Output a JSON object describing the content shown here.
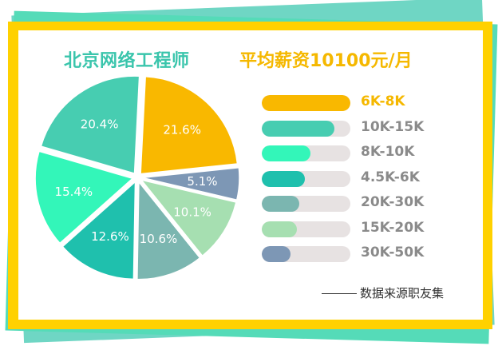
{
  "title_left": "北京网络工程师",
  "title_right": "平均薪资10100元/月",
  "source": "数据来源职友集",
  "colors": {
    "label_text": "#8a8a8a",
    "highlight_label": "#f5b800"
  },
  "chart_data": {
    "type": "pie",
    "title": "北京网络工程师",
    "slices": [
      {
        "label": "6K-8K",
        "value": 21.6,
        "pct_label": "21.6%",
        "color": "#f9b800",
        "bar_fill": 1.0,
        "highlight": true
      },
      {
        "label": "10K-15K",
        "value": 20.4,
        "pct_label": "20.4%",
        "color": "#47cdb1",
        "bar_fill": 0.82,
        "highlight": false
      },
      {
        "label": "8K-10K",
        "value": 15.4,
        "pct_label": "15.4%",
        "color": "#33f6b9",
        "bar_fill": 0.55,
        "highlight": false
      },
      {
        "label": "4.5K-6K",
        "value": 12.6,
        "pct_label": "12.6%",
        "color": "#1fc0ad",
        "bar_fill": 0.49,
        "highlight": false
      },
      {
        "label": "20K-30K",
        "value": 10.6,
        "pct_label": "10.6%",
        "color": "#7bb6b0",
        "bar_fill": 0.42,
        "highlight": false
      },
      {
        "label": "15K-20K",
        "value": 10.1,
        "pct_label": "10.1%",
        "color": "#a6dfb1",
        "bar_fill": 0.4,
        "highlight": false
      },
      {
        "label": "30K-50K",
        "value": 5.1,
        "pct_label": "5.1%",
        "color": "#7d97b5",
        "bar_fill": 0.32,
        "highlight": false
      }
    ],
    "pie_order": [
      "6K-8K",
      "30K-50K",
      "15K-20K",
      "20K-30K",
      "4.5K-6K",
      "8K-10K",
      "10K-15K"
    ]
  }
}
